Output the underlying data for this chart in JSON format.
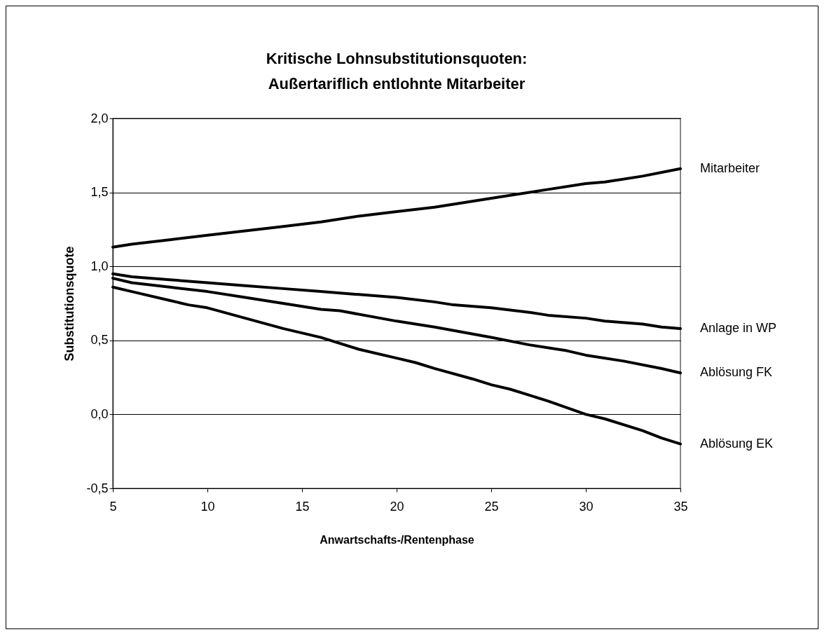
{
  "chart_data": {
    "type": "line",
    "title": "Kritische Lohnsubstitutionsquoten:\nAußertariflich entlohnte Mitarbeiter",
    "xlabel": "Anwartschafts-/Rentenphase",
    "ylabel": "Substitutionsquote",
    "xlim": [
      5,
      35
    ],
    "xticks": [
      5,
      10,
      15,
      20,
      25,
      30,
      35
    ],
    "ylim": [
      -0.5,
      2.0
    ],
    "yticks": [
      {
        "value": -0.5,
        "label": "-0,5"
      },
      {
        "value": 0,
        "label": "0,0"
      },
      {
        "value": 0.5,
        "label": "0,5"
      },
      {
        "value": 1.0,
        "label": "1,0"
      },
      {
        "value": 1.5,
        "label": "1,5"
      },
      {
        "value": 2.0,
        "label": "2,0"
      }
    ],
    "grid": "y",
    "legend": false,
    "marker": "none",
    "line_style": "solid",
    "series": [
      {
        "name": "Mitarbeiter",
        "color": "#000000",
        "x": [
          5,
          6,
          8,
          10,
          12,
          14,
          16,
          18,
          20,
          22,
          24,
          26,
          28,
          30,
          31,
          33,
          35
        ],
        "values": [
          1.13,
          1.15,
          1.18,
          1.21,
          1.24,
          1.27,
          1.3,
          1.34,
          1.37,
          1.4,
          1.44,
          1.48,
          1.52,
          1.56,
          1.57,
          1.61,
          1.66
        ]
      },
      {
        "name": "Anlage in WP",
        "color": "#000000",
        "x": [
          5,
          6,
          8,
          10,
          12,
          14,
          16,
          18,
          20,
          22,
          23,
          25,
          27,
          28,
          30,
          31,
          33,
          34,
          35
        ],
        "values": [
          0.95,
          0.93,
          0.91,
          0.89,
          0.87,
          0.85,
          0.83,
          0.81,
          0.79,
          0.76,
          0.74,
          0.72,
          0.69,
          0.67,
          0.65,
          0.63,
          0.61,
          0.59,
          0.58
        ]
      },
      {
        "name": "Ablösung FK",
        "color": "#000000",
        "x": [
          5,
          6,
          8,
          10,
          12,
          14,
          16,
          17,
          20,
          22,
          25,
          27,
          29,
          30,
          32,
          34,
          35
        ],
        "values": [
          0.92,
          0.89,
          0.86,
          0.83,
          0.79,
          0.75,
          0.71,
          0.7,
          0.63,
          0.59,
          0.52,
          0.47,
          0.43,
          0.4,
          0.36,
          0.31,
          0.28
        ]
      },
      {
        "name": "Ablösung EK",
        "color": "#000000",
        "x": [
          5,
          6,
          8,
          9,
          10,
          12,
          14,
          16,
          18,
          20,
          21,
          22,
          24,
          25,
          26,
          27,
          28,
          30,
          31,
          33,
          34,
          35
        ],
        "values": [
          0.86,
          0.83,
          0.77,
          0.74,
          0.72,
          0.65,
          0.58,
          0.52,
          0.44,
          0.38,
          0.35,
          0.31,
          0.24,
          0.2,
          0.17,
          0.13,
          0.09,
          0.0,
          -0.03,
          -0.11,
          -0.16,
          -0.2
        ]
      }
    ]
  }
}
